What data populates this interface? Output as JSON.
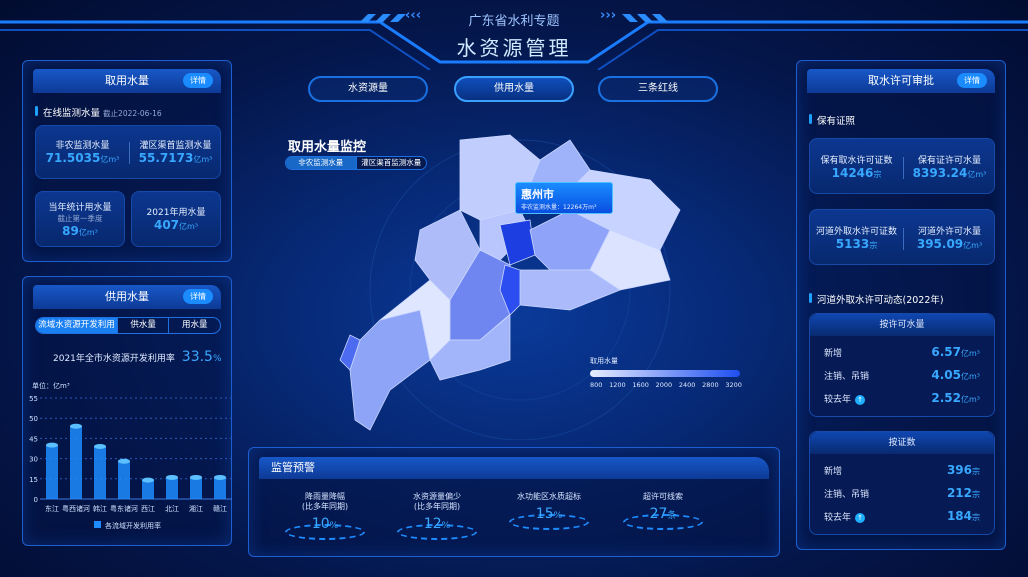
{
  "header": {
    "subtitle": "广东省水利专题",
    "title": "水资源管理"
  },
  "nav_tabs": [
    {
      "label": "水资源量"
    },
    {
      "label": "供用水量",
      "active": true
    },
    {
      "label": "三条红线"
    }
  ],
  "left_top": {
    "title": "取用水量",
    "detail": "详情",
    "section": "在线监测水量",
    "section_date": "截止2022-06-16",
    "card1": {
      "a_label": "非农监测水量",
      "a_value": "71.5035",
      "a_unit": "亿m³",
      "b_label": "灌区渠首监测水量",
      "b_value": "55.7173",
      "b_unit": "亿m³"
    },
    "card2": {
      "label": "当年统计用水量",
      "sub": "截止第一季度",
      "value": "89",
      "unit": "亿m³"
    },
    "card3": {
      "label": "2021年用水量",
      "value": "407",
      "unit": "亿m³"
    }
  },
  "left_bottom": {
    "title": "供用水量",
    "detail": "详情",
    "tabs": [
      "流域水资源开发利用",
      "供水量",
      "用水量"
    ],
    "rate_label": "2021年全市水资源开发利用率",
    "rate_value": "33.5",
    "rate_unit": "%"
  },
  "chart_data": {
    "type": "bar",
    "ylabel": "单位：亿m³",
    "yticks": [
      0,
      15,
      30,
      45,
      50,
      55
    ],
    "categories": [
      "东江",
      "粤西诸河",
      "韩江",
      "粤东诸河",
      "西江",
      "北江",
      "湘江",
      "赣江"
    ],
    "series": [
      {
        "name": "各流域开发利用率",
        "values": [
          40,
          48,
          39,
          28,
          14,
          16,
          16,
          16
        ]
      }
    ],
    "color": "#1e8cff",
    "legend": "bottom",
    "grid": true
  },
  "map": {
    "title": "取用水量监控",
    "toggle": [
      "非农监测水量",
      "灌区渠首监测水量"
    ],
    "tooltip": {
      "city": "惠州市",
      "label": "非农监测水量：",
      "value": "12264",
      "unit": "万m³"
    },
    "legend": {
      "title": "取用水量",
      "ticks": [
        "800",
        "1200",
        "1600",
        "2000",
        "2400",
        "2800",
        "3200"
      ]
    }
  },
  "warning": {
    "title": "监管预警",
    "items": [
      {
        "l1": "降雨量降幅",
        "l2": "(比多年同期)",
        "value": "10",
        "unit": "%"
      },
      {
        "l1": "水资源量偏少",
        "l2": "(比多年同期)",
        "value": "12",
        "unit": "%"
      },
      {
        "l1": "水功能区水质超标",
        "l2": "",
        "value": "15",
        "unit": "%"
      },
      {
        "l1": "超许可线索",
        "l2": "",
        "value": "27",
        "unit": "条"
      }
    ]
  },
  "right": {
    "title": "取水许可审批",
    "detail": "详情",
    "section1": "保有证照",
    "c1": {
      "a_label": "保有取水许可证数",
      "a_value": "14246",
      "a_unit": "宗",
      "b_label": "保有证许可水量",
      "b_value": "8393.24",
      "b_unit": "亿m³"
    },
    "c2": {
      "a_label": "河道外取水许可证数",
      "a_value": "5133",
      "a_unit": "宗",
      "b_label": "河道外许可水量",
      "b_value": "395.09",
      "b_unit": "亿m³"
    },
    "section2": "河道外取水许可动态(2022年)",
    "box1": {
      "title": "按许可水量",
      "rows": [
        {
          "label": "新增",
          "value": "6.57",
          "unit": "亿m³"
        },
        {
          "label": "注销、吊销",
          "value": "4.05",
          "unit": "亿m³"
        },
        {
          "label": "较去年",
          "value": "2.52",
          "unit": "亿m³",
          "up": true
        }
      ]
    },
    "box2": {
      "title": "按证数",
      "rows": [
        {
          "label": "新增",
          "value": "396",
          "unit": "宗"
        },
        {
          "label": "注销、吊销",
          "value": "212",
          "unit": "宗"
        },
        {
          "label": "较去年",
          "value": "184",
          "unit": "宗",
          "up": true
        }
      ]
    }
  }
}
